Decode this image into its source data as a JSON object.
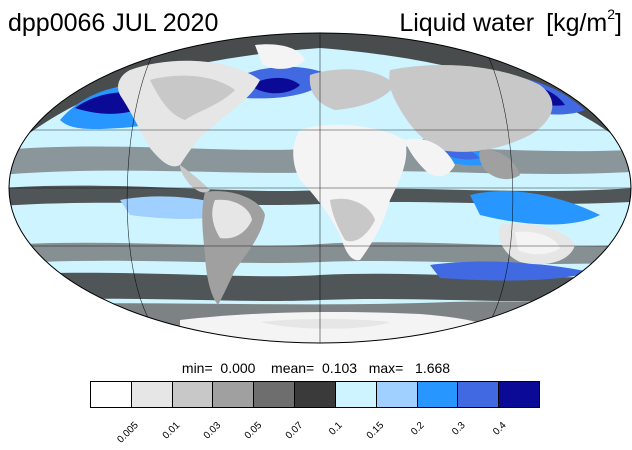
{
  "header": {
    "left_title": "dpp0066 JUL 2020",
    "right_title": "Liquid water",
    "right_units_prefix": "[kg/m",
    "right_units_exponent": "2",
    "right_units_suffix": "]"
  },
  "stats": {
    "min_label": "min=",
    "min_value": "0.000",
    "mean_label": "mean=",
    "mean_value": "0.103",
    "max_label": "max=",
    "max_value": "1.668"
  },
  "colorbar": {
    "colors": [
      "#ffffff",
      "#e6e6e6",
      "#c8c8c8",
      "#a0a0a0",
      "#6e6e6e",
      "#3a3a3a",
      "#cdf4ff",
      "#9fd0ff",
      "#2896ff",
      "#4169e1",
      "#0a0a96"
    ],
    "ticks": [
      "0.005",
      "0.01",
      "0.03",
      "0.05",
      "0.07",
      "0.1",
      "0.15",
      "0.2",
      "0.3",
      "0.4"
    ]
  },
  "map": {
    "projection": "mollweide",
    "ocean_color": "#cdf4ff",
    "land_color": "#f4f4f4",
    "outline_color": "#000000"
  }
}
